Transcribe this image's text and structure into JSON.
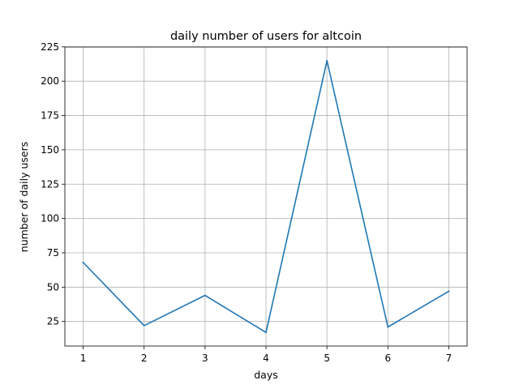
{
  "chart_data": {
    "type": "line",
    "title": "daily number of users for altcoin",
    "xlabel": "days",
    "ylabel": "number of daily users",
    "x": [
      1,
      2,
      3,
      4,
      5,
      6,
      7
    ],
    "series": [
      {
        "values": [
          68,
          22,
          44,
          17,
          215,
          21,
          47
        ],
        "color": "#1f77b4"
      }
    ],
    "xticks": [
      1,
      2,
      3,
      4,
      5,
      6,
      7
    ],
    "yticks": [
      25,
      50,
      75,
      100,
      125,
      150,
      175,
      200,
      225
    ],
    "xlim": [
      0.7,
      7.3
    ],
    "ylim": [
      7.1,
      224.9
    ],
    "grid": true
  }
}
